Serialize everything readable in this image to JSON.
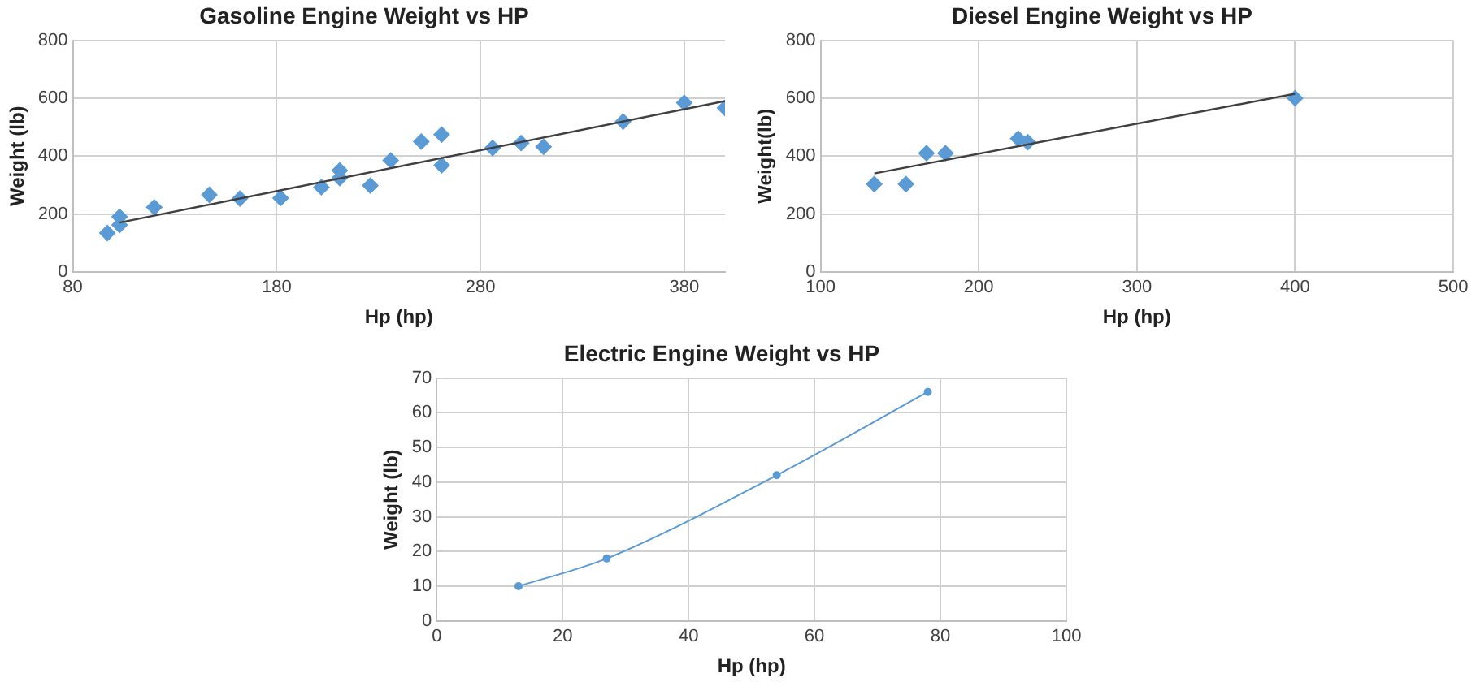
{
  "chart_data": [
    {
      "type": "scatter",
      "title": "Gasoline Engine Weight vs HP",
      "xlabel": "Hp (hp)",
      "ylabel": "Weight (lb)",
      "xlim": [
        80,
        400
      ],
      "xticks": [
        80,
        180,
        280,
        380
      ],
      "ylim": [
        0,
        800
      ],
      "yticks": [
        0,
        200,
        400,
        600,
        800
      ],
      "grid": true,
      "legend": false,
      "marker": "diamond",
      "x": [
        97,
        103,
        103,
        120,
        147,
        162,
        182,
        202,
        211,
        211,
        226,
        236,
        251,
        261,
        261,
        286,
        300,
        311,
        350,
        380,
        400
      ],
      "series": [
        {
          "color": "#5b9bd5",
          "values": [
            134,
            190,
            162,
            223,
            266,
            253,
            255,
            292,
            350,
            324,
            298,
            385,
            450,
            474,
            368,
            428,
            445,
            432,
            519,
            584,
            566
          ]
        },
        {
          "type": "line",
          "color": "#404040",
          "marker": "none",
          "x": [
            103,
            400
          ],
          "values": [
            170,
            590
          ]
        }
      ]
    },
    {
      "type": "scatter",
      "title": "Diesel Engine Weight vs HP",
      "xlabel": "Hp (hp)",
      "ylabel": "Weight(lb)",
      "xlim": [
        100,
        500
      ],
      "xticks": [
        100,
        200,
        300,
        400,
        500
      ],
      "ylim": [
        0,
        800
      ],
      "yticks": [
        0,
        200,
        400,
        600,
        800
      ],
      "grid": true,
      "legend": false,
      "marker": "diamond",
      "x": [
        134,
        154,
        167,
        179,
        225,
        231,
        400
      ],
      "series": [
        {
          "color": "#5b9bd5",
          "values": [
            303,
            303,
            410,
            410,
            460,
            448,
            600
          ]
        },
        {
          "type": "line",
          "color": "#404040",
          "marker": "none",
          "x": [
            134,
            400
          ],
          "values": [
            340,
            615
          ]
        }
      ]
    },
    {
      "type": "line",
      "title": "Electric Engine Weight vs HP",
      "xlabel": "Hp (hp)",
      "ylabel": "Weight (lb)",
      "xlim": [
        0,
        100
      ],
      "xticks": [
        0,
        20,
        40,
        60,
        80,
        100
      ],
      "ylim": [
        0,
        70
      ],
      "yticks": [
        0,
        10,
        20,
        30,
        40,
        50,
        60,
        70
      ],
      "grid": true,
      "legend": false,
      "marker": "circle",
      "x": [
        13,
        27,
        54,
        78
      ],
      "series": [
        {
          "color": "#5b9bd5",
          "values": [
            10,
            18,
            42,
            66
          ]
        }
      ]
    }
  ]
}
